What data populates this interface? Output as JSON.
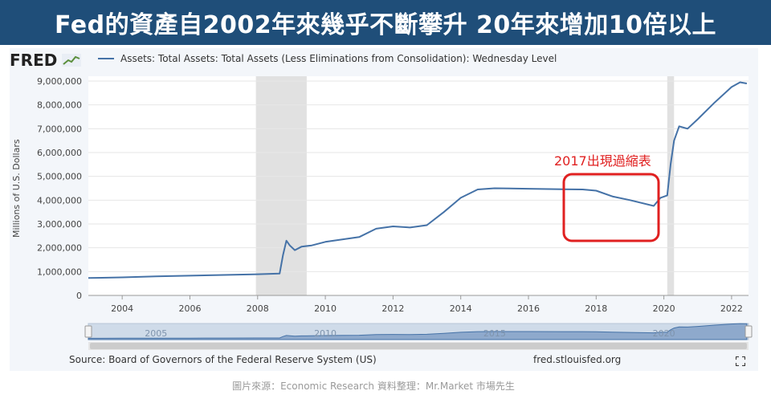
{
  "header": {
    "title": "Fed的資產自2002年來幾乎不斷攀升 20年來增加10倍以上"
  },
  "fred": {
    "logo_text": "FRED"
  },
  "series_title": "Assets: Total Assets: Total Assets (Less Eliminations from Consolidation): Wednesday Level",
  "source": "Source: Board of Governors of the Federal Reserve System (US)",
  "site": "fred.stlouisfed.org",
  "credit": "圖片來源：Economic  Research   資料整理：Mr.Market  市場先生",
  "annotation": "2017出現過縮表",
  "colors": {
    "header_bg": "#1f4e79",
    "line": "#4572a7",
    "recession": "#e1e1e1",
    "annotation": "#e02020"
  },
  "chart_data": {
    "type": "line",
    "title": "",
    "xlabel": "",
    "ylabel": "Millions of U.S. Dollars",
    "xlim": [
      2003.0,
      2022.5
    ],
    "ylim": [
      0,
      9000000
    ],
    "x_ticks": [
      "2004",
      "2006",
      "2008",
      "2010",
      "2012",
      "2014",
      "2016",
      "2018",
      "2020",
      "2022"
    ],
    "y_ticks": [
      "0",
      "1,000,000",
      "2,000,000",
      "3,000,000",
      "4,000,000",
      "5,000,000",
      "6,000,000",
      "7,000,000",
      "8,000,000",
      "9,000,000"
    ],
    "recessions": [
      [
        2007.95,
        2009.45
      ],
      [
        2020.1,
        2020.3
      ]
    ],
    "navigator_labels": [
      "2005",
      "2010",
      "2015",
      "2020"
    ],
    "series": [
      {
        "x": [
          2003.0,
          2004.0,
          2005.0,
          2006.0,
          2007.0,
          2008.0,
          2008.65,
          2008.75,
          2008.85,
          2008.95,
          2009.1,
          2009.3,
          2009.6,
          2010.0,
          2010.5,
          2011.0,
          2011.5,
          2012.0,
          2012.5,
          2013.0,
          2013.5,
          2014.0,
          2014.5,
          2015.0,
          2016.0,
          2017.0,
          2017.6,
          2018.0,
          2018.5,
          2019.0,
          2019.7,
          2019.9,
          2020.1,
          2020.2,
          2020.3,
          2020.45,
          2020.7,
          2021.0,
          2021.5,
          2022.0,
          2022.25,
          2022.45
        ],
        "y": [
          730000,
          760000,
          800000,
          830000,
          860000,
          890000,
          920000,
          1700000,
          2300000,
          2100000,
          1900000,
          2050000,
          2100000,
          2250000,
          2350000,
          2450000,
          2800000,
          2900000,
          2850000,
          2950000,
          3500000,
          4100000,
          4450000,
          4500000,
          4480000,
          4460000,
          4450000,
          4400000,
          4150000,
          4000000,
          3760000,
          4100000,
          4200000,
          5500000,
          6500000,
          7100000,
          7000000,
          7400000,
          8100000,
          8750000,
          8950000,
          8900000
        ]
      }
    ]
  }
}
